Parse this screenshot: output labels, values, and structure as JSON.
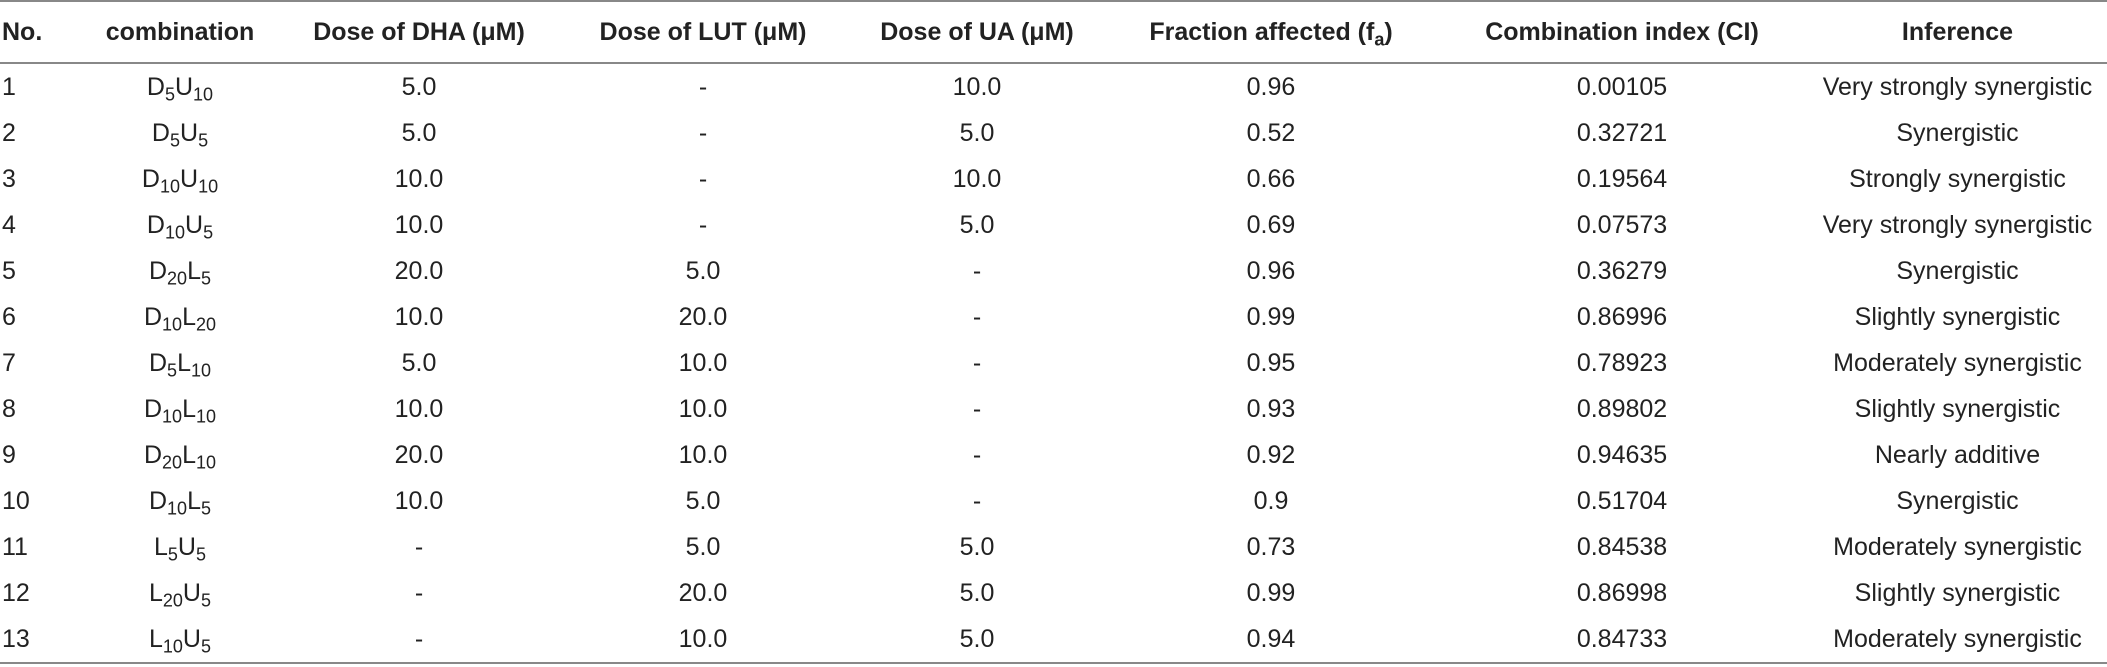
{
  "table": {
    "headers": [
      "No.",
      "combination",
      "Dose of DHA (μM)",
      "Dose of LUT (μM)",
      "Dose of UA (μM)",
      {
        "before": "Fraction affected (f",
        "sub": "a",
        "after": ")"
      },
      "Combination index (CI)",
      "Inference"
    ],
    "rows": [
      [
        "1",
        [
          [
            "D",
            "5"
          ],
          [
            "U",
            "10"
          ]
        ],
        "5.0",
        "-",
        "10.0",
        "0.96",
        "0.00105",
        "Very strongly synergistic"
      ],
      [
        "2",
        [
          [
            "D",
            "5"
          ],
          [
            "U",
            "5"
          ]
        ],
        "5.0",
        "-",
        "5.0",
        "0.52",
        "0.32721",
        "Synergistic"
      ],
      [
        "3",
        [
          [
            "D",
            "10"
          ],
          [
            "U",
            "10"
          ]
        ],
        "10.0",
        "-",
        "10.0",
        "0.66",
        "0.19564",
        "Strongly synergistic"
      ],
      [
        "4",
        [
          [
            "D",
            "10"
          ],
          [
            "U",
            "5"
          ]
        ],
        "10.0",
        "-",
        "5.0",
        "0.69",
        "0.07573",
        "Very strongly synergistic"
      ],
      [
        "5",
        [
          [
            "D",
            "20"
          ],
          [
            "L",
            "5"
          ]
        ],
        "20.0",
        "5.0",
        "-",
        "0.96",
        "0.36279",
        "Synergistic"
      ],
      [
        "6",
        [
          [
            "D",
            "10"
          ],
          [
            "L",
            "20"
          ]
        ],
        "10.0",
        "20.0",
        "-",
        "0.99",
        "0.86996",
        "Slightly synergistic"
      ],
      [
        "7",
        [
          [
            "D",
            "5"
          ],
          [
            "L",
            "10"
          ]
        ],
        "5.0",
        "10.0",
        "-",
        "0.95",
        "0.78923",
        "Moderately synergistic"
      ],
      [
        "8",
        [
          [
            "D",
            "10"
          ],
          [
            "L",
            "10"
          ]
        ],
        "10.0",
        "10.0",
        "-",
        "0.93",
        "0.89802",
        "Slightly synergistic"
      ],
      [
        "9",
        [
          [
            "D",
            "20"
          ],
          [
            "L",
            "10"
          ]
        ],
        "20.0",
        "10.0",
        "-",
        "0.92",
        "0.94635",
        "Nearly additive"
      ],
      [
        "10",
        [
          [
            "D",
            "10"
          ],
          [
            "L",
            "5"
          ]
        ],
        "10.0",
        "5.0",
        "-",
        "0.9",
        "0.51704",
        "Synergistic"
      ],
      [
        "11",
        [
          [
            "L",
            "5"
          ],
          [
            "U",
            "5"
          ]
        ],
        "-",
        "5.0",
        "5.0",
        "0.73",
        "0.84538",
        "Moderately synergistic"
      ],
      [
        "12",
        [
          [
            "L",
            "20"
          ],
          [
            "U",
            "5"
          ]
        ],
        "-",
        "20.0",
        "5.0",
        "0.99",
        "0.86998",
        "Slightly synergistic"
      ],
      [
        "13",
        [
          [
            "L",
            "10"
          ],
          [
            "U",
            "5"
          ]
        ],
        "-",
        "10.0",
        "5.0",
        "0.94",
        "0.84733",
        "Moderately synergistic"
      ]
    ]
  }
}
